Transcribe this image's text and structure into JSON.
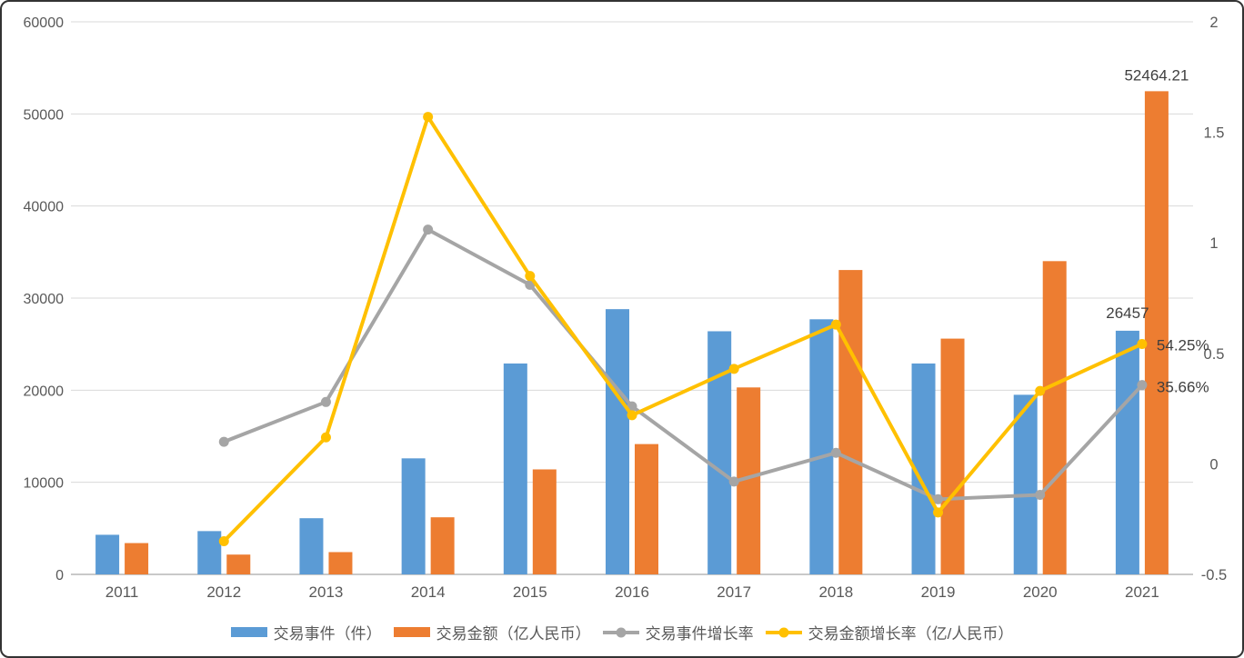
{
  "chart_data": {
    "type": "combo",
    "title": "",
    "categories": [
      "2011",
      "2012",
      "2013",
      "2014",
      "2015",
      "2016",
      "2017",
      "2018",
      "2019",
      "2020",
      "2021"
    ],
    "series": [
      {
        "name": "交易事件（件）",
        "type": "bar",
        "axis": "left",
        "color": "#5B9BD5",
        "values": [
          4300,
          4700,
          6100,
          12600,
          22900,
          28800,
          26400,
          27700,
          22900,
          19502,
          26457
        ]
      },
      {
        "name": "交易金额（亿人民币）",
        "type": "bar",
        "axis": "left",
        "color": "#ED7D31",
        "values": [
          3400,
          2150,
          2420,
          6200,
          11400,
          14150,
          20300,
          33050,
          25600,
          34014,
          52464.21
        ]
      },
      {
        "name": "交易事件增长率",
        "type": "line",
        "axis": "right",
        "color": "#A5A5A5",
        "values": [
          null,
          0.1,
          0.28,
          1.06,
          0.81,
          0.26,
          -0.08,
          0.05,
          -0.16,
          -0.14,
          0.3566
        ]
      },
      {
        "name": "交易金额增长率（亿/人民币）",
        "type": "line",
        "axis": "right",
        "color": "#FFC000",
        "values": [
          null,
          -0.35,
          0.12,
          1.57,
          0.85,
          0.22,
          0.43,
          0.63,
          -0.22,
          0.33,
          0.5425
        ]
      }
    ],
    "data_labels": [
      {
        "series": 0,
        "index": 10,
        "text": "26457"
      },
      {
        "series": 1,
        "index": 10,
        "text": "52464.21"
      },
      {
        "series": 2,
        "index": 10,
        "text": "35.66%"
      },
      {
        "series": 3,
        "index": 10,
        "text": "54.25%"
      }
    ],
    "left_axis": {
      "min": 0,
      "max": 60000,
      "step": 10000,
      "tick_labels": [
        "0",
        "10000",
        "20000",
        "30000",
        "40000",
        "50000",
        "60000"
      ]
    },
    "right_axis": {
      "min": -0.5,
      "max": 2,
      "step": 0.5,
      "tick_labels": [
        "-0.5",
        "0",
        "0.5",
        "1",
        "1.5",
        "2"
      ]
    },
    "grid": true,
    "legend_position": "bottom"
  },
  "colors": {
    "grid_line": "#D9D9D9",
    "axis_line": "#C9C9C9",
    "axis_text": "#595959",
    "data_label_text": "#3F3F3F",
    "background": "#FFFFFF",
    "frame_border": "#333333"
  }
}
